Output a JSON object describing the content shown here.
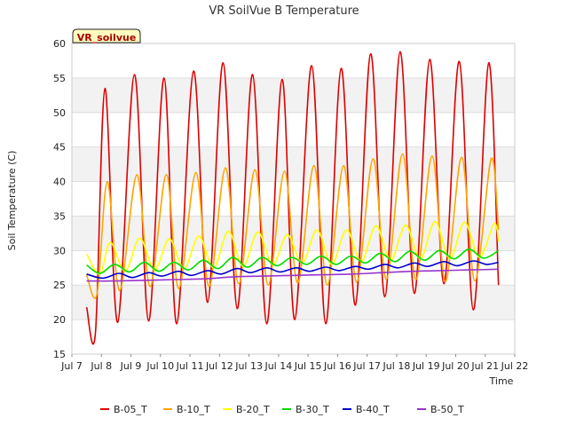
{
  "chart_data": {
    "type": "line",
    "title": "VR SoilVue B Temperature",
    "xlabel": "Time",
    "ylabel": "Soil Temperature (C)",
    "badge": "VR_soilvue",
    "xlim": [
      7.0,
      22.0
    ],
    "ylim": [
      15,
      60
    ],
    "x_ticks": [
      {
        "value": 7,
        "label": "Jul 7"
      },
      {
        "value": 8,
        "label": "Jul 8"
      },
      {
        "value": 9,
        "label": "Jul 9"
      },
      {
        "value": 10,
        "label": "Jul 10"
      },
      {
        "value": 11,
        "label": "Jul 11"
      },
      {
        "value": 12,
        "label": "Jul 12"
      },
      {
        "value": 13,
        "label": "Jul 13"
      },
      {
        "value": 14,
        "label": "Jul 14"
      },
      {
        "value": 15,
        "label": "Jul 15"
      },
      {
        "value": 16,
        "label": "Jul 16"
      },
      {
        "value": 17,
        "label": "Jul 17"
      },
      {
        "value": 18,
        "label": "Jul 18"
      },
      {
        "value": 19,
        "label": "Jul 19"
      },
      {
        "value": 20,
        "label": "Jul 20"
      },
      {
        "value": 21,
        "label": "Jul 21"
      },
      {
        "value": 22,
        "label": "Jul 22"
      }
    ],
    "y_ticks": [
      15,
      20,
      25,
      30,
      35,
      40,
      45,
      50,
      55,
      60
    ],
    "grid": true,
    "legend_position": "bottom",
    "series": [
      {
        "name": "B-05_T",
        "color": "#dd0000",
        "points": [
          [
            7.5,
            21.8
          ],
          [
            7.8,
            18.2
          ],
          [
            8.12,
            53.5
          ],
          [
            8.55,
            19.6
          ],
          [
            9.12,
            55.5
          ],
          [
            9.6,
            19.8
          ],
          [
            10.12,
            55.0
          ],
          [
            10.55,
            19.4
          ],
          [
            11.12,
            56.0
          ],
          [
            11.6,
            22.5
          ],
          [
            12.12,
            57.2
          ],
          [
            12.6,
            21.6
          ],
          [
            13.12,
            55.5
          ],
          [
            13.6,
            19.4
          ],
          [
            14.12,
            54.8
          ],
          [
            14.55,
            20.0
          ],
          [
            15.12,
            56.8
          ],
          [
            15.6,
            19.4
          ],
          [
            16.12,
            56.4
          ],
          [
            16.6,
            22.1
          ],
          [
            17.12,
            58.5
          ],
          [
            17.6,
            23.3
          ],
          [
            18.12,
            58.8
          ],
          [
            18.6,
            23.8
          ],
          [
            19.12,
            57.7
          ],
          [
            19.6,
            25.2
          ],
          [
            20.12,
            57.4
          ],
          [
            20.6,
            21.4
          ],
          [
            21.12,
            57.2
          ],
          [
            21.45,
            25.0
          ]
        ]
      },
      {
        "name": "B-10_T",
        "color": "#ffa500",
        "points": [
          [
            7.5,
            26.5
          ],
          [
            7.85,
            23.7
          ],
          [
            8.2,
            40.0
          ],
          [
            8.62,
            24.2
          ],
          [
            9.2,
            41.0
          ],
          [
            9.65,
            24.8
          ],
          [
            10.2,
            41.0
          ],
          [
            10.62,
            24.5
          ],
          [
            11.2,
            41.3
          ],
          [
            11.65,
            24.8
          ],
          [
            12.2,
            42.0
          ],
          [
            12.65,
            25.2
          ],
          [
            13.2,
            41.7
          ],
          [
            13.65,
            25.0
          ],
          [
            14.2,
            41.5
          ],
          [
            14.65,
            25.3
          ],
          [
            15.2,
            42.3
          ],
          [
            15.65,
            25.0
          ],
          [
            16.2,
            42.3
          ],
          [
            16.65,
            25.4
          ],
          [
            17.2,
            43.3
          ],
          [
            17.65,
            25.8
          ],
          [
            18.2,
            44.0
          ],
          [
            18.65,
            25.8
          ],
          [
            19.2,
            43.7
          ],
          [
            19.65,
            25.5
          ],
          [
            20.2,
            43.5
          ],
          [
            20.65,
            25.6
          ],
          [
            21.2,
            43.3
          ],
          [
            21.45,
            33.0
          ]
        ]
      },
      {
        "name": "B-20_T",
        "color": "#ffff00",
        "points": [
          [
            7.5,
            29.5
          ],
          [
            7.95,
            26.6
          ],
          [
            8.3,
            31.2
          ],
          [
            8.8,
            27.0
          ],
          [
            9.3,
            31.8
          ],
          [
            9.8,
            27.2
          ],
          [
            10.3,
            31.7
          ],
          [
            10.8,
            27.4
          ],
          [
            11.3,
            32.1
          ],
          [
            11.8,
            27.5
          ],
          [
            12.3,
            32.8
          ],
          [
            12.8,
            27.7
          ],
          [
            13.3,
            32.7
          ],
          [
            13.8,
            28.0
          ],
          [
            14.3,
            32.3
          ],
          [
            14.8,
            28.2
          ],
          [
            15.3,
            33.0
          ],
          [
            15.8,
            28.0
          ],
          [
            16.3,
            33.0
          ],
          [
            16.8,
            28.4
          ],
          [
            17.3,
            33.6
          ],
          [
            17.8,
            28.6
          ],
          [
            18.3,
            33.7
          ],
          [
            18.8,
            28.8
          ],
          [
            19.3,
            34.2
          ],
          [
            19.8,
            28.8
          ],
          [
            20.3,
            34.1
          ],
          [
            20.8,
            29.0
          ],
          [
            21.3,
            33.9
          ],
          [
            21.45,
            31.3
          ]
        ]
      },
      {
        "name": "B-30_T",
        "color": "#00dd00",
        "points": [
          [
            7.5,
            27.9
          ],
          [
            7.95,
            26.7
          ],
          [
            8.45,
            28.0
          ],
          [
            8.95,
            26.9
          ],
          [
            9.45,
            28.3
          ],
          [
            9.95,
            27.0
          ],
          [
            10.45,
            28.3
          ],
          [
            10.95,
            27.2
          ],
          [
            11.45,
            28.6
          ],
          [
            11.95,
            27.4
          ],
          [
            12.45,
            29.0
          ],
          [
            12.95,
            27.6
          ],
          [
            13.45,
            29.0
          ],
          [
            13.95,
            27.8
          ],
          [
            14.45,
            29.0
          ],
          [
            14.95,
            28.0
          ],
          [
            15.45,
            29.2
          ],
          [
            15.95,
            28.0
          ],
          [
            16.45,
            29.2
          ],
          [
            16.95,
            28.2
          ],
          [
            17.45,
            29.6
          ],
          [
            17.95,
            28.4
          ],
          [
            18.45,
            29.9
          ],
          [
            18.95,
            28.6
          ],
          [
            19.45,
            30.0
          ],
          [
            19.95,
            28.8
          ],
          [
            20.45,
            30.2
          ],
          [
            20.95,
            28.9
          ],
          [
            21.45,
            30.0
          ]
        ]
      },
      {
        "name": "B-40_T",
        "color": "#0000cc",
        "points": [
          [
            7.5,
            26.6
          ],
          [
            8.05,
            26.0
          ],
          [
            8.6,
            26.7
          ],
          [
            9.05,
            26.1
          ],
          [
            9.6,
            26.8
          ],
          [
            10.05,
            26.3
          ],
          [
            10.6,
            27.0
          ],
          [
            11.05,
            26.4
          ],
          [
            11.6,
            27.1
          ],
          [
            12.05,
            26.6
          ],
          [
            12.6,
            27.4
          ],
          [
            13.05,
            26.8
          ],
          [
            13.6,
            27.5
          ],
          [
            14.05,
            26.9
          ],
          [
            14.6,
            27.5
          ],
          [
            15.05,
            27.0
          ],
          [
            15.6,
            27.6
          ],
          [
            16.05,
            27.1
          ],
          [
            16.6,
            27.7
          ],
          [
            17.05,
            27.3
          ],
          [
            17.6,
            28.0
          ],
          [
            18.05,
            27.5
          ],
          [
            18.6,
            28.2
          ],
          [
            19.05,
            27.7
          ],
          [
            19.6,
            28.4
          ],
          [
            20.05,
            27.8
          ],
          [
            20.6,
            28.5
          ],
          [
            21.05,
            28.0
          ],
          [
            21.45,
            28.3
          ]
        ]
      },
      {
        "name": "B-50_T",
        "color": "#9933cc",
        "points": [
          [
            7.5,
            25.6
          ],
          [
            8.5,
            25.6
          ],
          [
            9.5,
            25.7
          ],
          [
            10.5,
            25.8
          ],
          [
            11.5,
            25.9
          ],
          [
            12.5,
            26.2
          ],
          [
            13.5,
            26.3
          ],
          [
            14.5,
            26.4
          ],
          [
            15.5,
            26.5
          ],
          [
            16.5,
            26.6
          ],
          [
            17.5,
            26.8
          ],
          [
            18.5,
            27.0
          ],
          [
            19.5,
            27.1
          ],
          [
            20.5,
            27.2
          ],
          [
            21.45,
            27.3
          ]
        ]
      }
    ]
  }
}
